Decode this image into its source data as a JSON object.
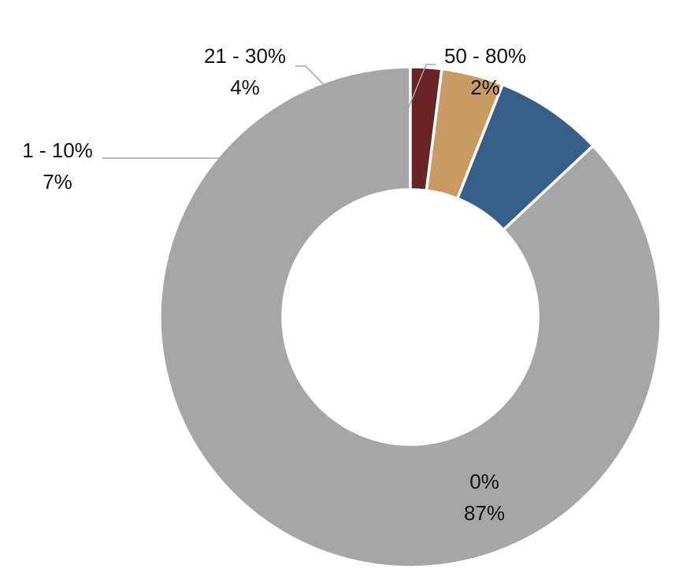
{
  "chart_data": {
    "type": "pie",
    "variant": "donut",
    "title": "",
    "slices": [
      {
        "label": "0%",
        "value": 87,
        "value_label": "87%",
        "color": "#a6a6a6"
      },
      {
        "label": "1 - 10%",
        "value": 7,
        "value_label": "7%",
        "color": "#375f8c"
      },
      {
        "label": "21 - 30%",
        "value": 4,
        "value_label": "4%",
        "color": "#c99a62"
      },
      {
        "label": "50 - 80%",
        "value": 2,
        "value_label": "2%",
        "color": "#6a2426"
      }
    ],
    "direction": "counterclockwise",
    "start_angle": "top",
    "slice_border_color": "#ffffff",
    "leader_line_color": "#a6a6a6",
    "legend": "none"
  }
}
